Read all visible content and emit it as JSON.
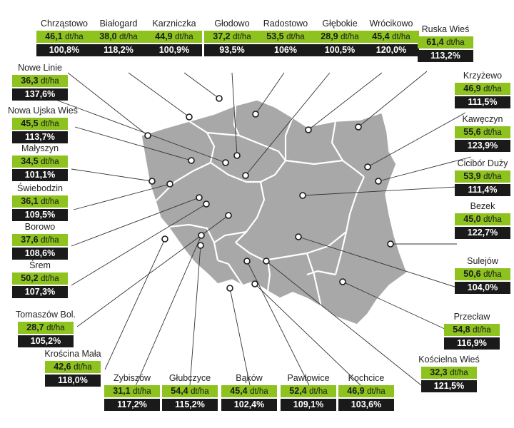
{
  "colors": {
    "yield_box": "#8dc21f",
    "pct_box": "#1a1a1a",
    "map_fill": "#a8a8a8",
    "border": "#ffffff",
    "leader": "#333333"
  },
  "unit": "dt/ha",
  "locations": [
    {
      "name": "Chrząstowo",
      "yield": "46,1",
      "pct": "100,8%"
    },
    {
      "name": "Białogard",
      "yield": "38,0",
      "pct": "118,2%"
    },
    {
      "name": "Karzniczka",
      "yield": "44,9",
      "pct": "100,9%"
    },
    {
      "name": "Głodowo",
      "yield": "37,2",
      "pct": "93,5%"
    },
    {
      "name": "Radostowo",
      "yield": "53,5",
      "pct": "106%"
    },
    {
      "name": "Głębokie",
      "yield": "28,9",
      "pct": "100,5%"
    },
    {
      "name": "Wrócikowo",
      "yield": "45,4",
      "pct": "120,0%"
    },
    {
      "name": "Ruska Wieś",
      "yield": "61,4",
      "pct": "113,2%"
    },
    {
      "name": "Nowe Linie",
      "yield": "36,3",
      "pct": "137,6%"
    },
    {
      "name": "Krzyżewo",
      "yield": "46,9",
      "pct": "111,5%"
    },
    {
      "name": "Nowa Ujska Wieś",
      "yield": "45,5",
      "pct": "113,7%"
    },
    {
      "name": "Kawęczyn",
      "yield": "55,6",
      "pct": "123,9%"
    },
    {
      "name": "Małyszyn",
      "yield": "34,5",
      "pct": "101,1%"
    },
    {
      "name": "Cicibór Duży",
      "yield": "53,9",
      "pct": "111,4%"
    },
    {
      "name": "Świebodzin",
      "yield": "36,1",
      "pct": "109,5%"
    },
    {
      "name": "Bezek",
      "yield": "45,0",
      "pct": "122,7%"
    },
    {
      "name": "Borowo",
      "yield": "37,6",
      "pct": "108,6%"
    },
    {
      "name": "Sulejów",
      "yield": "50,6",
      "pct": "104,0%"
    },
    {
      "name": "Śrem",
      "yield": "50,2",
      "pct": "107,3%"
    },
    {
      "name": "Przecław",
      "yield": "54,8",
      "pct": "116,9%"
    },
    {
      "name": "Tomaszów Bol.",
      "yield": "28,7",
      "pct": "105,2%"
    },
    {
      "name": "Kościelna Wieś",
      "yield": "32,3",
      "pct": "121,5%"
    },
    {
      "name": "Krościna Mała",
      "yield": "42,6",
      "pct": "118,0%"
    },
    {
      "name": "Kochcice",
      "yield": "46,9",
      "pct": "103,6%"
    },
    {
      "name": "Zybiszów",
      "yield": "31,1",
      "pct": "117,2%"
    },
    {
      "name": "Pawłowice",
      "yield": "52,4",
      "pct": "109,1%"
    },
    {
      "name": "Głubczyce",
      "yield": "54,4",
      "pct": "115,2%"
    },
    {
      "name": "Bąków",
      "yield": "45,4",
      "pct": "102,4%"
    }
  ]
}
